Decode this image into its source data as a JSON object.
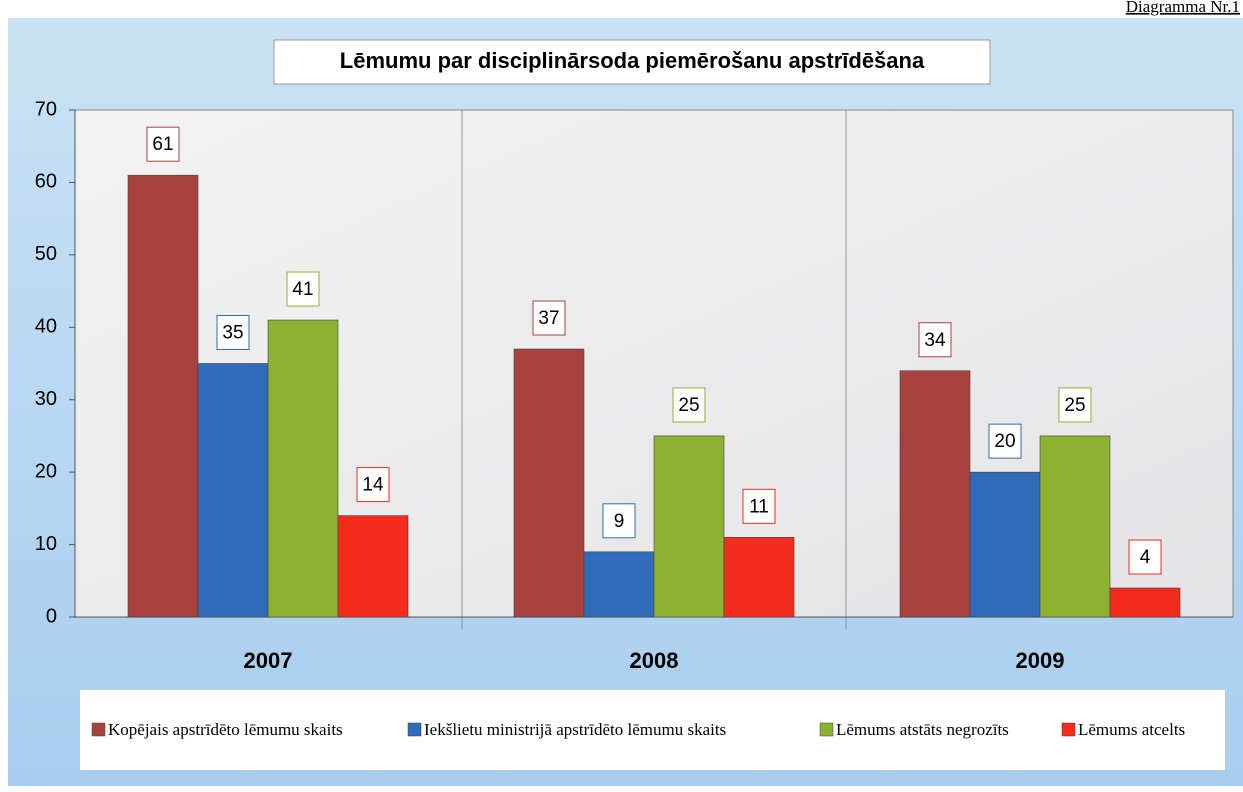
{
  "chart_data": {
    "type": "bar",
    "title": "Lēmumu par disciplinārsoda piemērošanu apstrīdēšana",
    "note": "Diagramma Nr.1",
    "categories": [
      "2007",
      "2008",
      "2009"
    ],
    "series": [
      {
        "name": "Kopējais apstrīdēto lēmumu skaits",
        "color": "#a8423f",
        "values": [
          61,
          37,
          34
        ]
      },
      {
        "name": "Iekšlietu ministrijā apstrīdēto lēmumu skaits",
        "color": "#2f6bb8",
        "values": [
          35,
          9,
          20
        ]
      },
      {
        "name": "Lēmums atstāts negrozīts",
        "color": "#8db232",
        "values": [
          41,
          25,
          25
        ]
      },
      {
        "name": "Lēmums atcelts",
        "color": "#f42a1c",
        "values": [
          14,
          11,
          4
        ]
      }
    ],
    "ylim": [
      0,
      70
    ],
    "yticks": [
      0,
      10,
      20,
      30,
      40,
      50,
      60,
      70
    ],
    "grid": false,
    "legend": "bottom"
  }
}
